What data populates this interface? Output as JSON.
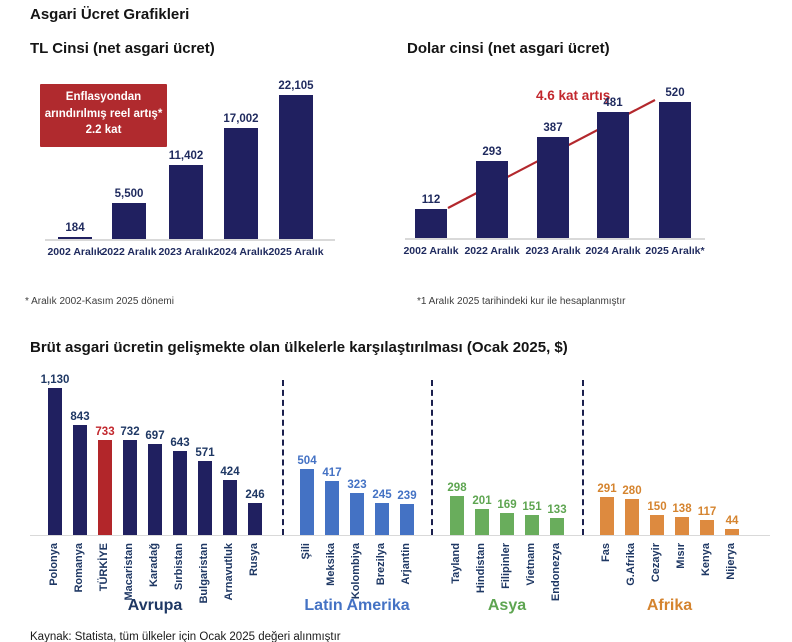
{
  "page_title": "Asgari Ücret Grafikleri",
  "section_title": "Brüt asgari ücretin gelişmekte olan ülkelerle karşılaştırılması (Ocak 2025, $)",
  "source_note": "Kaynak: Statista, tüm ülkeler için Ocak 2025 değeri alınmıştır",
  "footnotes": {
    "tl": "* Aralık 2002-Kasım 2025 dönemi",
    "usd": "*1 Aralık 2025 tarihindeki kur ile hesaplanmıştır"
  },
  "colors": {
    "navy_bar": "#202060",
    "navy_text": "#1f2a5e",
    "navy_label": "#1f3864",
    "red_accent": "#b02a2e",
    "red_text": "#c2272d",
    "latin_blue": "#4472c4",
    "asia_green": "#69ad5c",
    "africa_orange": "#dd8a3f",
    "axis_gray": "#d9d9d9"
  },
  "chart_data": [
    {
      "type": "bar",
      "title": "TL Cinsi (net asgari ücret)",
      "categories": [
        "2002 Aralık",
        "2022 Aralık",
        "2023 Aralık",
        "2024 Aralık",
        "2025 Aralık"
      ],
      "values": [
        184,
        5500,
        11402,
        17002,
        22105
      ],
      "value_labels": [
        "184",
        "5,500",
        "11,402",
        "17,002",
        "22,105"
      ],
      "bar_color": "#202060",
      "xlabel": "",
      "ylabel": "",
      "ylim": [
        0,
        23000
      ],
      "grid": false,
      "legend": "none",
      "annotation": {
        "line1": "Enflasyondan",
        "line2": "arındırılmış reel artış*",
        "line3": "2.2 kat"
      }
    },
    {
      "type": "bar",
      "title": "Dolar cinsi (net asgari ücret)",
      "categories": [
        "2002 Aralık",
        "2022 Aralık",
        "2023 Aralık",
        "2024 Aralık",
        "2025 Aralık*"
      ],
      "values": [
        112,
        293,
        387,
        481,
        520
      ],
      "value_labels": [
        "112",
        "293",
        "387",
        "481",
        "520"
      ],
      "bar_color": "#202060",
      "xlabel": "",
      "ylabel": "",
      "ylim": [
        0,
        550
      ],
      "grid": false,
      "legend": "none",
      "annotation": "4.6 kat artış",
      "trend_line": {
        "color": "#b3282d",
        "from_value": 112,
        "to_value": 520
      }
    },
    {
      "type": "bar",
      "title": "Brüt asgari ücretin gelişmekte olan ülkelerle karşılaştırılması (Ocak 2025, $)",
      "xlabel": "",
      "ylabel": "",
      "ylim": [
        0,
        1200
      ],
      "grid": false,
      "legend": "none",
      "groups": [
        {
          "name": "Avrupa",
          "bar_color": "#202060",
          "value_color": "#1f3864",
          "name_color": "#1f3864",
          "countries": [
            {
              "name": "Polonya",
              "value": 1130,
              "label": "1,130"
            },
            {
              "name": "Romanya",
              "value": 843,
              "label": "843"
            },
            {
              "name": "TÜRKİYE",
              "value": 733,
              "label": "733",
              "bar_color": "#b2262a",
              "value_color": "#c2272d"
            },
            {
              "name": "Macaristan",
              "value": 732,
              "label": "732"
            },
            {
              "name": "Karadağ",
              "value": 697,
              "label": "697"
            },
            {
              "name": "Sırbistan",
              "value": 643,
              "label": "643"
            },
            {
              "name": "Bulgaristan",
              "value": 571,
              "label": "571"
            },
            {
              "name": "Arnavutluk",
              "value": 424,
              "label": "424"
            },
            {
              "name": "Rusya",
              "value": 246,
              "label": "246"
            }
          ]
        },
        {
          "name": "Latin Amerika",
          "bar_color": "#4472c4",
          "value_color": "#4472c4",
          "name_color": "#4472c4",
          "countries": [
            {
              "name": "Şili",
              "value": 504,
              "label": "504"
            },
            {
              "name": "Meksika",
              "value": 417,
              "label": "417"
            },
            {
              "name": "Kolombiya",
              "value": 323,
              "label": "323"
            },
            {
              "name": "Brezilya",
              "value": 245,
              "label": "245"
            },
            {
              "name": "Arjantin",
              "value": 239,
              "label": "239"
            }
          ]
        },
        {
          "name": "Asya",
          "bar_color": "#69ad5c",
          "value_color": "#5ea551",
          "name_color": "#5ea551",
          "countries": [
            {
              "name": "Tayland",
              "value": 298,
              "label": "298"
            },
            {
              "name": "Hindistan",
              "value": 201,
              "label": "201"
            },
            {
              "name": "Filipinler",
              "value": 169,
              "label": "169"
            },
            {
              "name": "Vietnam",
              "value": 151,
              "label": "151"
            },
            {
              "name": "Endonezya",
              "value": 133,
              "label": "133"
            }
          ]
        },
        {
          "name": "Afrika",
          "bar_color": "#dd8a3f",
          "value_color": "#d5842f",
          "name_color": "#d5842f",
          "countries": [
            {
              "name": "Fas",
              "value": 291,
              "label": "291"
            },
            {
              "name": "G.Afrika",
              "value": 280,
              "label": "280"
            },
            {
              "name": "Cezayir",
              "value": 150,
              "label": "150"
            },
            {
              "name": "Mısır",
              "value": 138,
              "label": "138"
            },
            {
              "name": "Kenya",
              "value": 117,
              "label": "117"
            },
            {
              "name": "Nijerya",
              "value": 44,
              "label": "44"
            }
          ]
        }
      ]
    }
  ]
}
